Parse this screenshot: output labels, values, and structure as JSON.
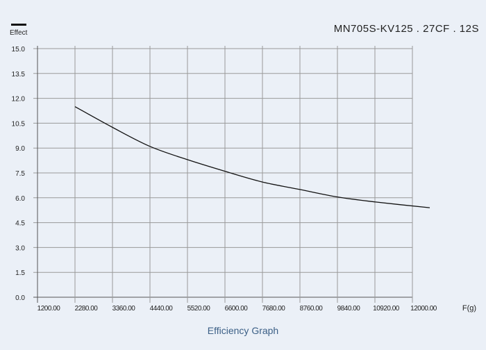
{
  "chart_data": {
    "type": "line",
    "title": "MN705S-KV125 . 27CF . 12S",
    "caption": "Efficiency Graph",
    "legend": [
      {
        "label": "Effect",
        "color": "#111111"
      }
    ],
    "legend_placement": "top-left",
    "xlabel": "F(g)",
    "ylabel": "",
    "xlim": [
      1200,
      12000
    ],
    "ylim": [
      0,
      15
    ],
    "grid": true,
    "x_ticks": [
      "1200.00",
      "2280.00",
      "3360.00",
      "4440.00",
      "5520.00",
      "6600.00",
      "7680.00",
      "8760.00",
      "9840.00",
      "10920.00",
      "12000.00"
    ],
    "y_ticks": [
      "0.0",
      "1.5",
      "3.0",
      "4.5",
      "6.0",
      "7.5",
      "9.0",
      "10.5",
      "12.0",
      "13.5",
      "15.0"
    ],
    "series": [
      {
        "name": "Effect",
        "x": [
          2280,
          3360,
          4440,
          5520,
          6600,
          7680,
          8760,
          9840,
          10920,
          12500
        ],
        "y": [
          11.5,
          10.25,
          9.1,
          8.3,
          7.6,
          6.95,
          6.5,
          6.05,
          5.75,
          5.4
        ]
      }
    ]
  }
}
